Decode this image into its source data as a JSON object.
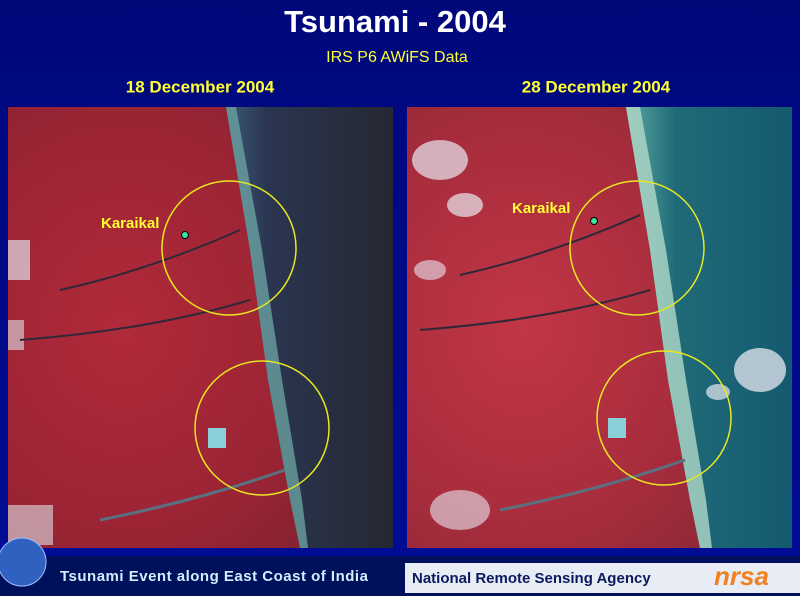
{
  "header": {
    "title": "Tsunami  - 2004",
    "subtitle": "IRS P6 AWiFS Data"
  },
  "panels": [
    {
      "date": "18 December 2004",
      "place": "Karaikal"
    },
    {
      "date": "28 December 2004",
      "place": "Karaikal"
    }
  ],
  "footer": {
    "caption": "Tsunami Event along East Coast of India",
    "agency": "National Remote Sensing Agency",
    "logo": "nrsa"
  }
}
